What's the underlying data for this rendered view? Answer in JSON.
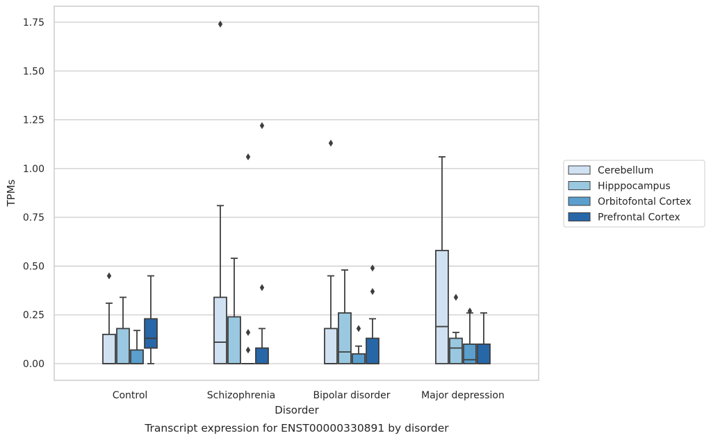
{
  "chart_data": {
    "type": "box",
    "caption": "Transcript expression for ENST00000330891 by disorder",
    "xlabel": "Disorder",
    "ylabel": "TPMs",
    "ylim": [
      -0.085,
      1.83
    ],
    "yticks": [
      "0.00",
      "0.25",
      "0.50",
      "0.75",
      "1.00",
      "1.25",
      "1.50",
      "1.75"
    ],
    "categories": [
      "Control",
      "Schizophrenia",
      "Bipolar disorder",
      "Major depression"
    ],
    "grid": true,
    "legend_position": "right",
    "series": [
      {
        "name": "Cerebellum",
        "color": "#d0e1f2",
        "boxes": [
          {
            "min": 0.0,
            "q1": 0.0,
            "median": 0.0,
            "q3": 0.15,
            "max": 0.31,
            "outliers": [
              0.45
            ]
          },
          {
            "min": 0.0,
            "q1": 0.0,
            "median": 0.11,
            "q3": 0.34,
            "max": 0.81,
            "outliers": [
              1.74
            ]
          },
          {
            "min": 0.0,
            "q1": 0.0,
            "median": 0.0,
            "q3": 0.18,
            "max": 0.45,
            "outliers": [
              1.13
            ]
          },
          {
            "min": 0.0,
            "q1": 0.0,
            "median": 0.19,
            "q3": 0.58,
            "max": 1.06,
            "outliers": []
          }
        ]
      },
      {
        "name": "Hipppocampus",
        "color": "#9ac8e0",
        "boxes": [
          {
            "min": 0.0,
            "q1": 0.0,
            "median": 0.0,
            "q3": 0.18,
            "max": 0.34,
            "outliers": []
          },
          {
            "min": 0.0,
            "q1": 0.0,
            "median": 0.0,
            "q3": 0.24,
            "max": 0.54,
            "outliers": []
          },
          {
            "min": 0.0,
            "q1": 0.0,
            "median": 0.06,
            "q3": 0.26,
            "max": 0.48,
            "outliers": []
          },
          {
            "min": 0.0,
            "q1": 0.0,
            "median": 0.08,
            "q3": 0.13,
            "max": 0.16,
            "outliers": [
              0.34
            ]
          }
        ]
      },
      {
        "name": "Orbitofontal Cortex",
        "color": "#5a9fcd",
        "boxes": [
          {
            "min": 0.0,
            "q1": 0.0,
            "median": 0.0,
            "q3": 0.07,
            "max": 0.17,
            "outliers": []
          },
          {
            "min": 0.0,
            "q1": 0.0,
            "median": 0.0,
            "q3": 0.0,
            "max": 0.0,
            "outliers": [
              0.07,
              0.16,
              1.06
            ]
          },
          {
            "min": 0.0,
            "q1": 0.0,
            "median": 0.0,
            "q3": 0.05,
            "max": 0.09,
            "outliers": [
              0.18
            ]
          },
          {
            "min": 0.0,
            "q1": 0.0,
            "median": 0.02,
            "q3": 0.1,
            "max": 0.26,
            "outliers": [
              0.27
            ]
          }
        ]
      },
      {
        "name": "Prefrontal Cortex",
        "color": "#2767a8",
        "boxes": [
          {
            "min": 0.0,
            "q1": 0.08,
            "median": 0.13,
            "q3": 0.23,
            "max": 0.45,
            "outliers": []
          },
          {
            "min": 0.0,
            "q1": 0.0,
            "median": 0.0,
            "q3": 0.08,
            "max": 0.18,
            "outliers": [
              0.39,
              1.22
            ]
          },
          {
            "min": 0.0,
            "q1": 0.0,
            "median": 0.0,
            "q3": 0.13,
            "max": 0.23,
            "outliers": [
              0.37,
              0.49
            ]
          },
          {
            "min": 0.0,
            "q1": 0.0,
            "median": 0.0,
            "q3": 0.1,
            "max": 0.26,
            "outliers": []
          }
        ]
      }
    ]
  }
}
